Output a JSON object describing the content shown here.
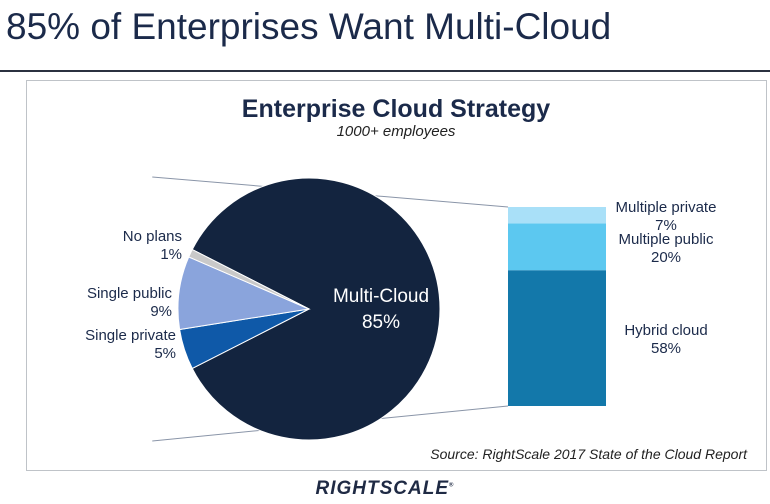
{
  "slide": {
    "title": "85% of Enterprises Want Multi-Cloud",
    "logo_text": "RIGHTSCALE",
    "logo_mark": "®"
  },
  "chart_data": [
    {
      "type": "pie",
      "title": "Enterprise Cloud Strategy",
      "subtitle": "1000+ employees",
      "slices": [
        {
          "label": "Multi-Cloud",
          "value": 85,
          "value_label": "85%",
          "color": "#13243f"
        },
        {
          "label": "Single private",
          "value": 5,
          "value_label": "5%",
          "color": "#0f59a8"
        },
        {
          "label": "Single public",
          "value": 9,
          "value_label": "9%",
          "color": "#8aa4dc"
        },
        {
          "label": "No plans",
          "value": 1,
          "value_label": "1%",
          "color": "#c9c9c9"
        }
      ],
      "source": "Source: RightScale 2017 State of the Cloud Report"
    },
    {
      "type": "bar",
      "stacked": true,
      "breakdown_of": "Multi-Cloud",
      "segments": [
        {
          "label": "Hybrid cloud",
          "value": 58,
          "value_label": "58%",
          "color": "#1378aa"
        },
        {
          "label": "Multiple public",
          "value": 20,
          "value_label": "20%",
          "color": "#5cc8f0"
        },
        {
          "label": "Multiple private",
          "value": 7,
          "value_label": "7%",
          "color": "#a9e0f8"
        }
      ]
    }
  ]
}
